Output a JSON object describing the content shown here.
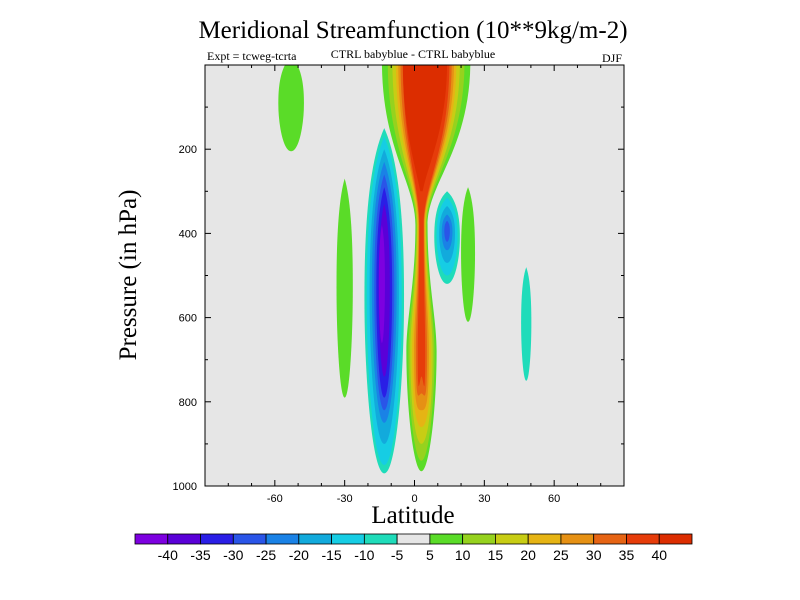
{
  "chart_data": {
    "type": "contour",
    "title": "Meridional Streamfunction (10**9kg/m-2)",
    "subtitle_left": "Expt = tcweg-tcrta",
    "subtitle_center": "CTRL babyblue - CTRL babyblue",
    "subtitle_right": "DJF",
    "xlabel": "Latitude",
    "ylabel": "Pressure (in hPa)",
    "xlim": [
      -90,
      90
    ],
    "ylim": [
      1000,
      0
    ],
    "x_ticks": [
      -60,
      -30,
      0,
      30,
      60
    ],
    "y_ticks": [
      200,
      400,
      600,
      800,
      1000
    ],
    "background_color": "#e6e6e6",
    "colorbar": {
      "labels": [
        "-40",
        "-35",
        "-30",
        "-25",
        "-20",
        "-15",
        "-10",
        "-5",
        "5",
        "10",
        "15",
        "20",
        "25",
        "30",
        "35",
        "40"
      ],
      "colors": [
        "#7d00e0",
        "#5a00d8",
        "#2a1ee6",
        "#2a55e8",
        "#1a82e6",
        "#12aadc",
        "#16cde4",
        "#1fdcba",
        "#e6e6e6",
        "#5adc28",
        "#96d21e",
        "#c8cd14",
        "#e6b414",
        "#e69114",
        "#e66414",
        "#e63c0a",
        "#dc2d00"
      ]
    },
    "features": [
      {
        "kind": "positive",
        "level_max": 40,
        "description_lat_center": 4,
        "pressure_range": [
          0,
          960
        ]
      },
      {
        "kind": "negative",
        "level_min": -40,
        "lat_center": -13,
        "pressure_range": [
          150,
          970
        ]
      },
      {
        "kind": "negative",
        "level_min": -25,
        "lat_center": 14,
        "pressure_range": [
          300,
          520
        ]
      },
      {
        "kind": "negative",
        "level_min": -10,
        "lat_center": 48,
        "pressure_range": [
          480,
          750
        ]
      },
      {
        "kind": "positive",
        "level_max": 10,
        "lat_center": -53,
        "pressure_range": [
          0,
          205
        ]
      },
      {
        "kind": "positive",
        "level_max": 10,
        "lat_center": -30,
        "pressure_range": [
          270,
          790
        ]
      },
      {
        "kind": "positive",
        "level_max": 10,
        "lat_center": 21,
        "pressure_range": [
          280,
          610
        ]
      }
    ]
  }
}
